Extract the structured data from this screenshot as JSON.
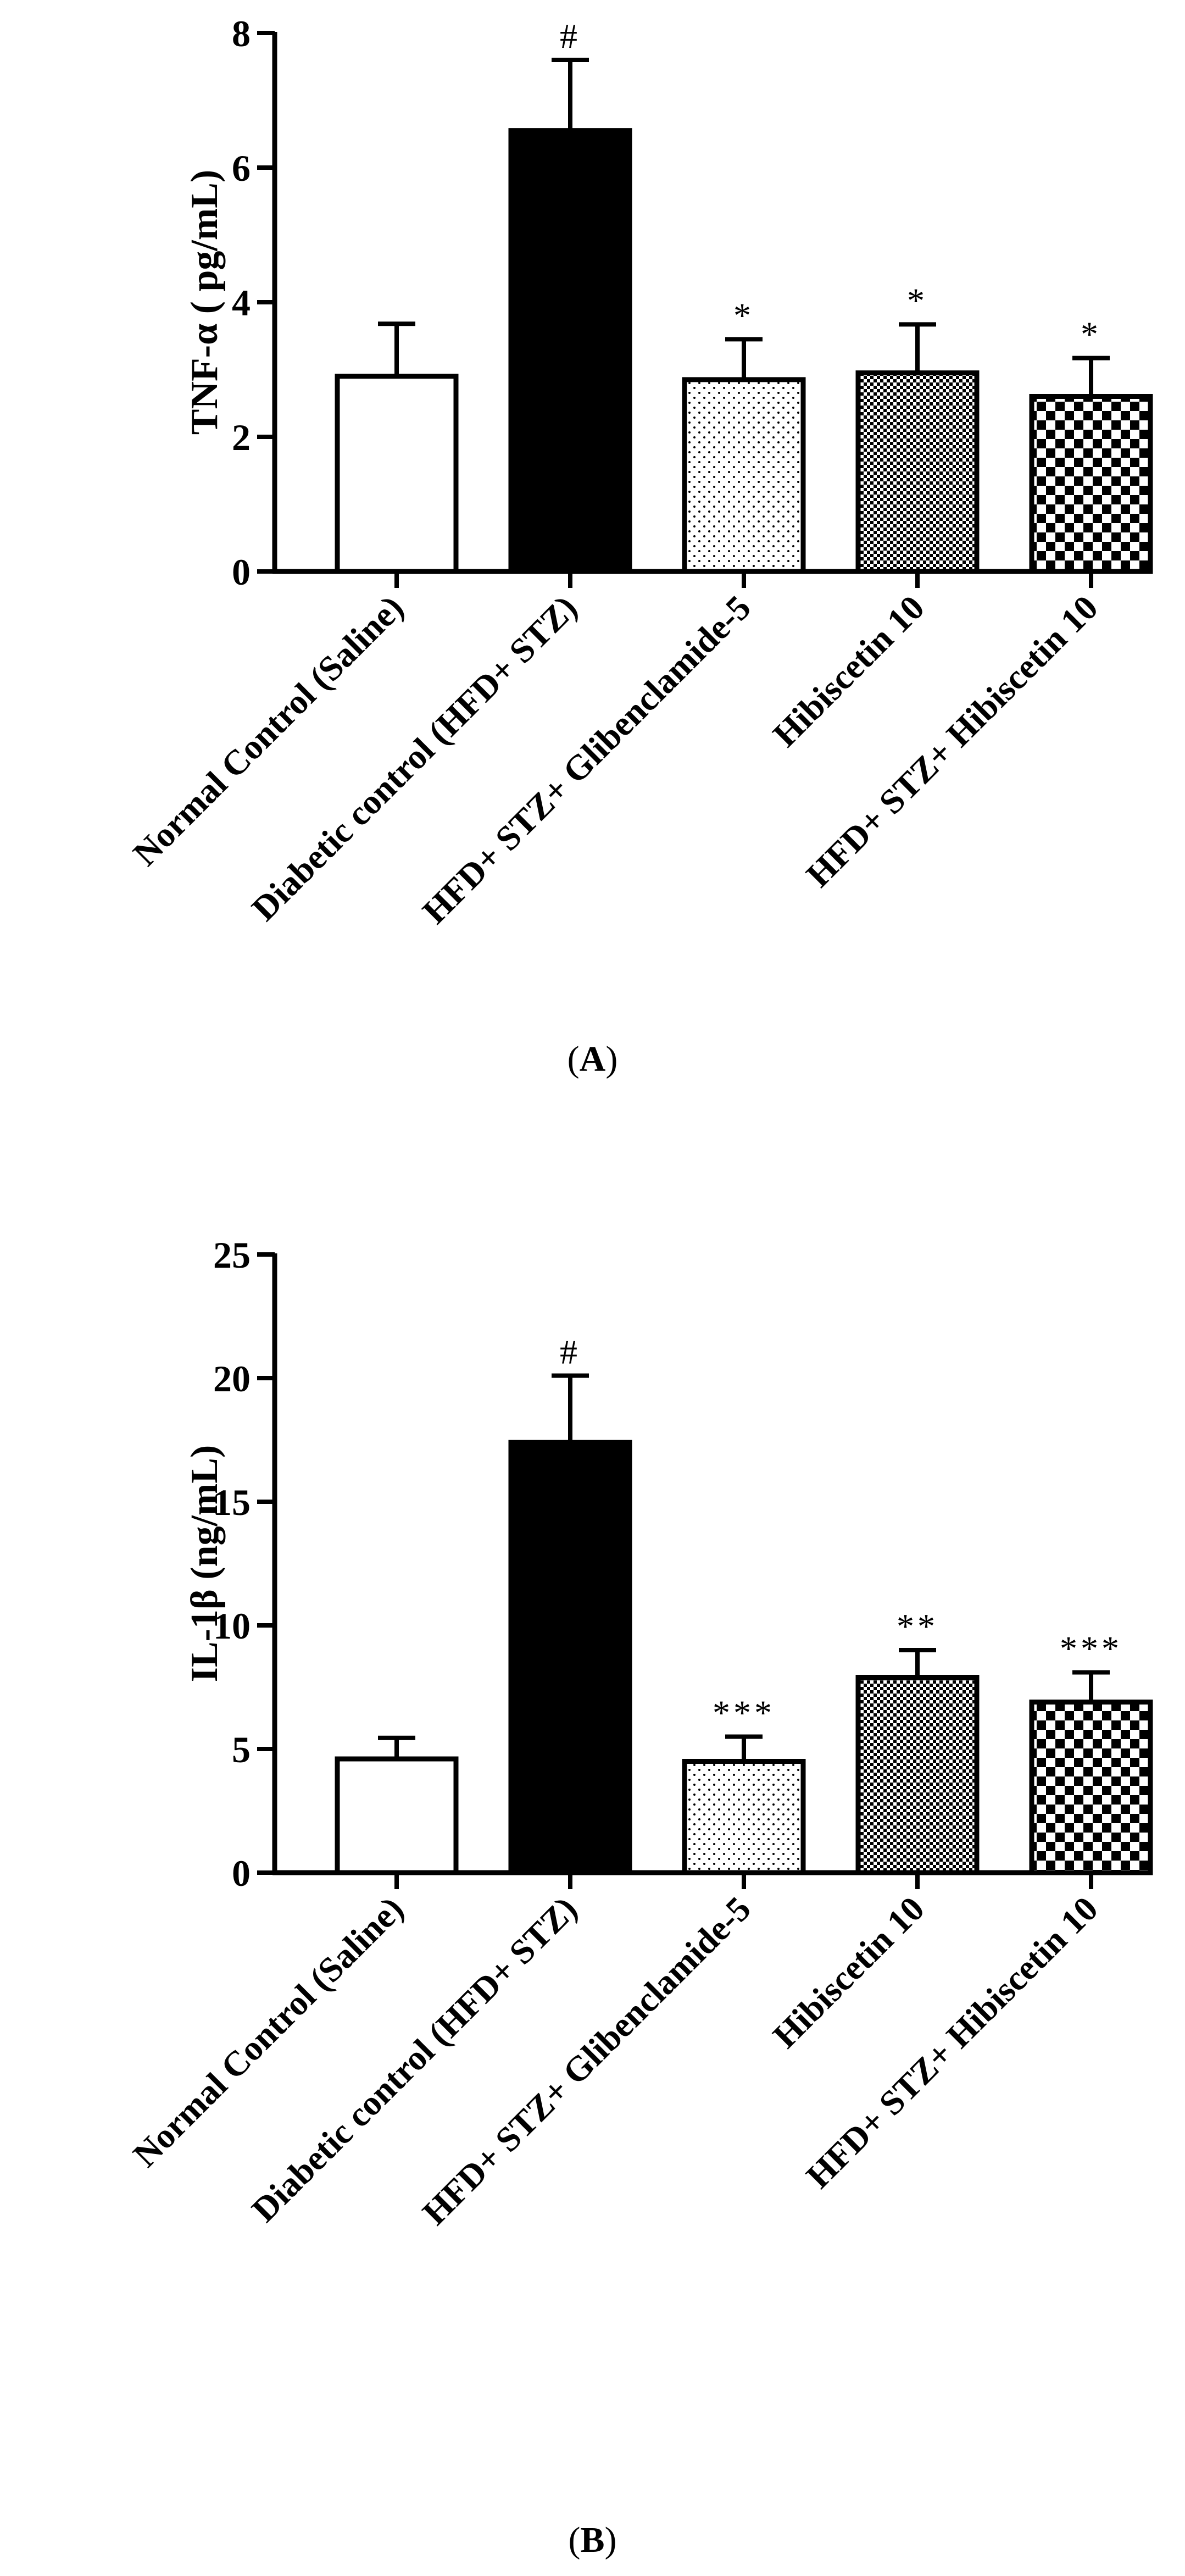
{
  "chart_data": [
    {
      "panel_label": "A",
      "type": "bar",
      "ylabel": "TNF-α ( pg/mL)",
      "ylim": [
        0,
        8
      ],
      "yticks": [
        "0",
        "2",
        "4",
        "6",
        "8"
      ],
      "categories": [
        "Normal Control (Saline)",
        "Diabetic control (HFD+ STZ)",
        "HFD+ STZ+ Glibenclamide-5",
        "Hibiscetin 10",
        "HFD+ STZ+ Hibiscetin 10"
      ],
      "values": [
        2.9,
        6.55,
        2.85,
        2.95,
        2.6
      ],
      "errors": [
        0.78,
        1.05,
        0.6,
        0.72,
        0.57
      ],
      "annotations": [
        "",
        "#",
        "*",
        "*",
        "*"
      ],
      "fills": [
        "white",
        "black",
        "dots",
        "fine-check",
        "checker"
      ],
      "grid": false
    },
    {
      "panel_label": "B",
      "type": "bar",
      "ylabel": "IL-1β (ng/mL)",
      "ylim": [
        0,
        25
      ],
      "yticks": [
        "0",
        "5",
        "10",
        "15",
        "20",
        "25"
      ],
      "categories": [
        "Normal Control (Saline)",
        "Diabetic control (HFD+ STZ)",
        "HFD+ STZ+ Glibenclamide-5",
        "Hibiscetin 10",
        "HFD+ STZ+ Hibiscetin 10"
      ],
      "values": [
        4.6,
        17.4,
        4.5,
        7.9,
        6.9
      ],
      "errors": [
        0.85,
        2.7,
        1.0,
        1.1,
        1.2
      ],
      "annotations": [
        "",
        "#",
        "***",
        "**",
        "***"
      ],
      "fills": [
        "white",
        "black",
        "dots",
        "fine-check",
        "checker"
      ],
      "grid": false
    }
  ],
  "captions": [
    "A",
    "B"
  ]
}
